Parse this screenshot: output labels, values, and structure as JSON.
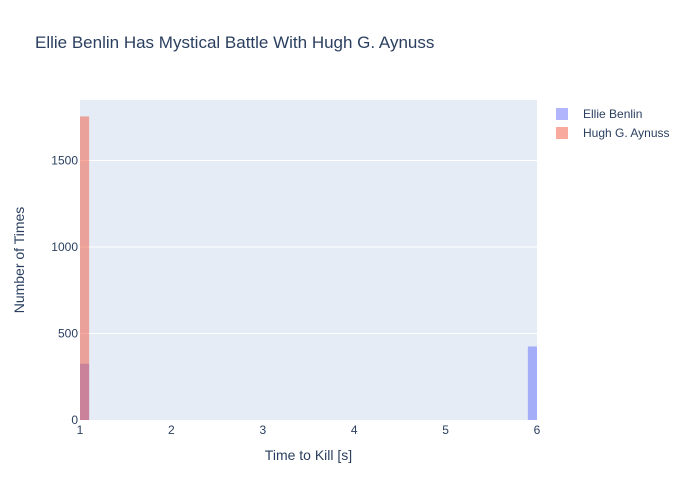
{
  "chart_data": {
    "type": "bar",
    "title": "Ellie Benlin Has Mystical Battle With Hugh G. Aynuss",
    "xlabel": "Time to Kill [s]",
    "ylabel": "Number of Times",
    "xlim": [
      1,
      6
    ],
    "ylim": [
      0,
      1850
    ],
    "x_ticks": [
      1,
      2,
      3,
      4,
      5,
      6
    ],
    "y_ticks": [
      0,
      500,
      1000,
      1500
    ],
    "bin_width": 0.1,
    "grid": true,
    "legend_position": "top-right",
    "series": [
      {
        "name": "Ellie Benlin",
        "color": "#636efa",
        "opacity": 0.5,
        "bins": [
          {
            "x0": 1.0,
            "x1": 1.1,
            "value": 325
          },
          {
            "x0": 5.9,
            "x1": 6.0,
            "value": 425
          }
        ]
      },
      {
        "name": "Hugh G. Aynuss",
        "color": "#ef553b",
        "opacity": 0.5,
        "bins": [
          {
            "x0": 1.0,
            "x1": 1.1,
            "value": 1755
          }
        ]
      }
    ]
  }
}
